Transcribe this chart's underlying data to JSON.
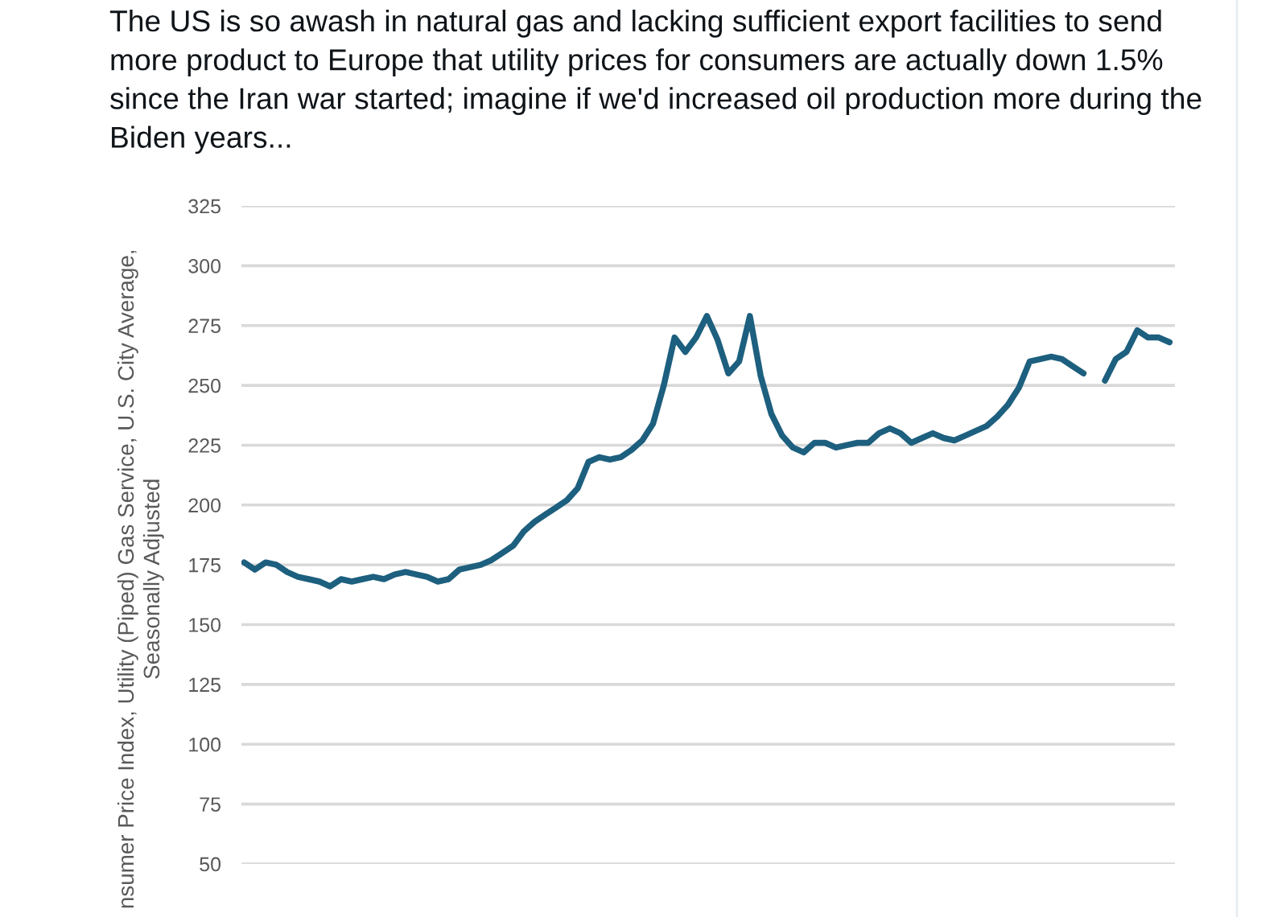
{
  "chart_data": {
    "type": "line",
    "title": "The US is so awash in natural gas and lacking sufficient export facilities to send\nmore product to Europe that utility prices for consumers are actually down 1.5%\nsince the Iran war started; imagine if we'd increased oil production more during the\nBiden years...",
    "ylabel": "nsumer Price Index, Utility (Piped) Gas Service, U.S. City Average,\nSeasonally Adjusted",
    "categories": [
      null,
      null,
      null,
      null,
      null,
      null,
      null,
      null,
      null,
      null,
      null,
      null,
      null,
      null,
      null,
      null,
      null,
      null,
      null,
      null,
      null,
      null,
      null,
      null,
      null,
      null,
      null,
      null,
      null,
      null,
      null,
      null,
      null,
      null,
      null,
      null,
      null,
      null,
      null,
      null,
      null,
      null,
      null,
      null,
      null,
      null,
      null,
      null,
      null,
      null,
      null,
      null,
      null,
      null,
      null,
      null,
      null,
      null,
      null,
      null,
      null,
      null,
      null,
      null,
      null,
      null,
      null,
      null,
      null,
      null,
      null,
      null,
      null,
      null,
      null,
      null,
      null,
      null,
      null,
      null,
      null,
      null,
      null,
      null,
      null,
      null,
      null
    ],
    "series": [
      {
        "color": "#1d5f7e",
        "values": [
          176,
          173,
          176,
          175,
          172,
          170,
          169,
          168,
          166,
          169,
          168,
          169,
          170,
          169,
          171,
          172,
          171,
          170,
          168,
          169,
          173,
          174,
          175,
          177,
          180,
          183,
          189,
          193,
          196,
          199,
          202,
          207,
          218,
          220,
          219,
          220,
          223,
          227,
          234,
          250,
          270,
          264,
          270,
          279,
          269,
          255,
          260,
          279,
          254,
          238,
          229,
          224,
          222,
          226,
          226,
          224,
          225,
          226,
          226,
          230,
          232,
          230,
          226,
          228,
          230,
          228,
          227,
          229,
          231,
          233,
          237,
          242,
          249,
          260,
          261,
          262,
          261,
          258,
          255,
          null,
          null,
          null,
          null,
          null,
          null,
          null,
          null
        ]
      },
      {
        "color": "#1d5f7e",
        "values": [
          null,
          null,
          null,
          null,
          null,
          null,
          null,
          null,
          null,
          null,
          null,
          null,
          null,
          null,
          null,
          null,
          null,
          null,
          null,
          null,
          null,
          null,
          null,
          null,
          null,
          null,
          null,
          null,
          null,
          null,
          null,
          null,
          null,
          null,
          null,
          null,
          null,
          null,
          null,
          null,
          null,
          null,
          null,
          null,
          null,
          null,
          null,
          null,
          null,
          null,
          null,
          null,
          null,
          null,
          null,
          null,
          null,
          null,
          null,
          null,
          null,
          null,
          null,
          null,
          null,
          null,
          null,
          null,
          null,
          null,
          null,
          null,
          null,
          null,
          null,
          null,
          null,
          null,
          null,
          null,
          252,
          261,
          264,
          273,
          270,
          270,
          268
        ]
      }
    ],
    "ylim": [
      50,
      325
    ],
    "yticks": [
      50,
      75,
      100,
      125,
      150,
      175,
      200,
      225,
      250,
      275,
      300,
      325
    ],
    "grid": "y",
    "tick_labels": "y",
    "line_style": "solid"
  }
}
